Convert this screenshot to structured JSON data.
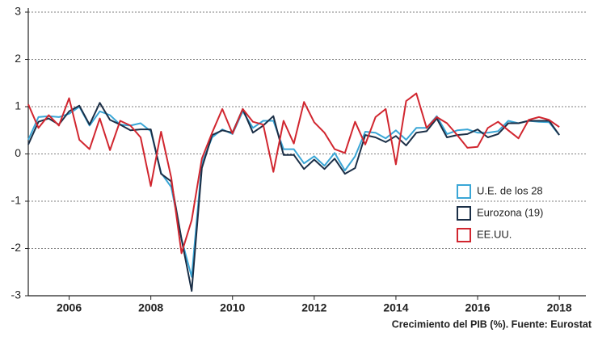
{
  "chart_data": {
    "type": "line",
    "note": "Crecimiento del PIB (%). Fuente: Eurostat",
    "x": [
      2005,
      2005.25,
      2005.5,
      2005.75,
      2006,
      2006.25,
      2006.5,
      2006.75,
      2007,
      2007.25,
      2007.5,
      2007.75,
      2008,
      2008.25,
      2008.5,
      2008.75,
      2009,
      2009.25,
      2009.5,
      2009.75,
      2010,
      2010.25,
      2010.5,
      2010.75,
      2011,
      2011.25,
      2011.5,
      2011.75,
      2012,
      2012.25,
      2012.5,
      2012.75,
      2013,
      2013.25,
      2013.5,
      2013.75,
      2014,
      2014.25,
      2014.5,
      2014.75,
      2015,
      2015.25,
      2015.5,
      2015.75,
      2016,
      2016.25,
      2016.5,
      2016.75,
      2017,
      2017.25,
      2017.5,
      2017.75,
      2018
    ],
    "series": [
      {
        "name": "U.E. de los 28",
        "color": "#3aa6d6",
        "values": [
          0.3,
          0.78,
          0.8,
          0.78,
          0.85,
          1.0,
          0.6,
          0.9,
          0.82,
          0.62,
          0.6,
          0.65,
          0.48,
          -0.4,
          -0.7,
          -1.8,
          -2.6,
          -0.2,
          0.35,
          0.52,
          0.42,
          0.9,
          0.55,
          0.7,
          0.7,
          0.1,
          0.1,
          -0.2,
          -0.05,
          -0.25,
          0.02,
          -0.35,
          -0.05,
          0.47,
          0.45,
          0.33,
          0.5,
          0.3,
          0.55,
          0.55,
          0.8,
          0.42,
          0.5,
          0.52,
          0.45,
          0.45,
          0.48,
          0.7,
          0.65,
          0.7,
          0.68,
          0.67,
          0.4
        ]
      },
      {
        "name": "Eurozona (19)",
        "color": "#1b2f47",
        "values": [
          0.2,
          0.68,
          0.75,
          0.62,
          0.9,
          1.02,
          0.62,
          1.08,
          0.72,
          0.62,
          0.5,
          0.52,
          0.52,
          -0.42,
          -0.58,
          -1.8,
          -2.9,
          -0.3,
          0.4,
          0.5,
          0.45,
          0.95,
          0.45,
          0.6,
          0.8,
          -0.02,
          -0.02,
          -0.32,
          -0.12,
          -0.32,
          -0.1,
          -0.42,
          -0.3,
          0.4,
          0.35,
          0.25,
          0.38,
          0.18,
          0.45,
          0.48,
          0.75,
          0.35,
          0.4,
          0.42,
          0.52,
          0.35,
          0.42,
          0.65,
          0.65,
          0.7,
          0.7,
          0.7,
          0.4
        ]
      },
      {
        "name": "EE.UU.",
        "color": "#d1262f",
        "values": [
          1.05,
          0.55,
          0.82,
          0.6,
          1.18,
          0.3,
          0.1,
          0.75,
          0.08,
          0.7,
          0.6,
          0.35,
          -0.68,
          0.47,
          -0.5,
          -2.1,
          -1.4,
          -0.1,
          0.45,
          0.95,
          0.43,
          0.95,
          0.68,
          0.62,
          -0.38,
          0.7,
          0.22,
          1.1,
          0.67,
          0.45,
          0.1,
          0.02,
          0.68,
          0.2,
          0.78,
          0.95,
          -0.22,
          1.12,
          1.28,
          0.55,
          0.78,
          0.65,
          0.4,
          0.13,
          0.15,
          0.55,
          0.68,
          0.5,
          0.33,
          0.72,
          0.78,
          0.72,
          0.57
        ]
      }
    ],
    "xlim": [
      2005,
      2018.65
    ],
    "xticks": [
      2006,
      2008,
      2010,
      2012,
      2014,
      2016,
      2018
    ],
    "ylim": [
      -3,
      3
    ],
    "yticks": [
      -3,
      -2,
      -1,
      0,
      1,
      2,
      3
    ],
    "grid": true,
    "legend": "lower right"
  }
}
